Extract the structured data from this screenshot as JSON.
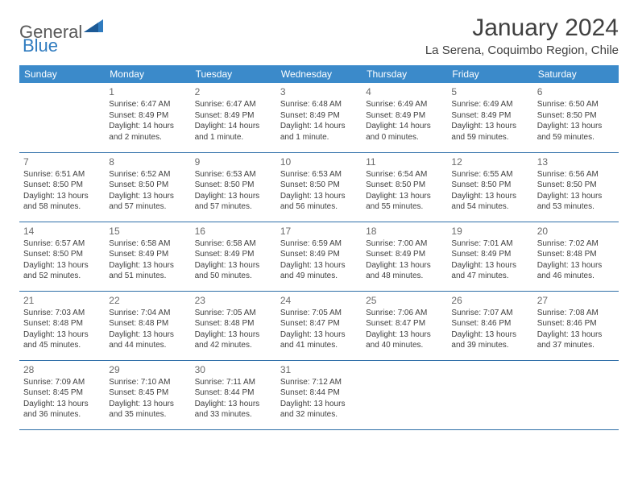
{
  "brand": {
    "part1": "General",
    "part2": "Blue"
  },
  "title": "January 2024",
  "location": "La Serena, Coquimbo Region, Chile",
  "colors": {
    "header_bg": "#3b8aca",
    "header_text": "#ffffff",
    "row_border": "#2f6fa8",
    "body_text": "#404040",
    "daynum_text": "#6a6a6a",
    "brand_gray": "#585858",
    "brand_blue": "#2f7bbf",
    "page_bg": "#ffffff"
  },
  "typography": {
    "title_fontsize": 30,
    "location_fontsize": 15,
    "dayhead_fontsize": 12,
    "cell_fontsize": 10,
    "daynum_fontsize": 12
  },
  "dayHeaders": [
    "Sunday",
    "Monday",
    "Tuesday",
    "Wednesday",
    "Thursday",
    "Friday",
    "Saturday"
  ],
  "weeks": [
    [
      null,
      {
        "n": "1",
        "sr": "6:47 AM",
        "ss": "8:49 PM",
        "dl": "14 hours and 2 minutes."
      },
      {
        "n": "2",
        "sr": "6:47 AM",
        "ss": "8:49 PM",
        "dl": "14 hours and 1 minute."
      },
      {
        "n": "3",
        "sr": "6:48 AM",
        "ss": "8:49 PM",
        "dl": "14 hours and 1 minute."
      },
      {
        "n": "4",
        "sr": "6:49 AM",
        "ss": "8:49 PM",
        "dl": "14 hours and 0 minutes."
      },
      {
        "n": "5",
        "sr": "6:49 AM",
        "ss": "8:49 PM",
        "dl": "13 hours and 59 minutes."
      },
      {
        "n": "6",
        "sr": "6:50 AM",
        "ss": "8:50 PM",
        "dl": "13 hours and 59 minutes."
      }
    ],
    [
      {
        "n": "7",
        "sr": "6:51 AM",
        "ss": "8:50 PM",
        "dl": "13 hours and 58 minutes."
      },
      {
        "n": "8",
        "sr": "6:52 AM",
        "ss": "8:50 PM",
        "dl": "13 hours and 57 minutes."
      },
      {
        "n": "9",
        "sr": "6:53 AM",
        "ss": "8:50 PM",
        "dl": "13 hours and 57 minutes."
      },
      {
        "n": "10",
        "sr": "6:53 AM",
        "ss": "8:50 PM",
        "dl": "13 hours and 56 minutes."
      },
      {
        "n": "11",
        "sr": "6:54 AM",
        "ss": "8:50 PM",
        "dl": "13 hours and 55 minutes."
      },
      {
        "n": "12",
        "sr": "6:55 AM",
        "ss": "8:50 PM",
        "dl": "13 hours and 54 minutes."
      },
      {
        "n": "13",
        "sr": "6:56 AM",
        "ss": "8:50 PM",
        "dl": "13 hours and 53 minutes."
      }
    ],
    [
      {
        "n": "14",
        "sr": "6:57 AM",
        "ss": "8:50 PM",
        "dl": "13 hours and 52 minutes."
      },
      {
        "n": "15",
        "sr": "6:58 AM",
        "ss": "8:49 PM",
        "dl": "13 hours and 51 minutes."
      },
      {
        "n": "16",
        "sr": "6:58 AM",
        "ss": "8:49 PM",
        "dl": "13 hours and 50 minutes."
      },
      {
        "n": "17",
        "sr": "6:59 AM",
        "ss": "8:49 PM",
        "dl": "13 hours and 49 minutes."
      },
      {
        "n": "18",
        "sr": "7:00 AM",
        "ss": "8:49 PM",
        "dl": "13 hours and 48 minutes."
      },
      {
        "n": "19",
        "sr": "7:01 AM",
        "ss": "8:49 PM",
        "dl": "13 hours and 47 minutes."
      },
      {
        "n": "20",
        "sr": "7:02 AM",
        "ss": "8:48 PM",
        "dl": "13 hours and 46 minutes."
      }
    ],
    [
      {
        "n": "21",
        "sr": "7:03 AM",
        "ss": "8:48 PM",
        "dl": "13 hours and 45 minutes."
      },
      {
        "n": "22",
        "sr": "7:04 AM",
        "ss": "8:48 PM",
        "dl": "13 hours and 44 minutes."
      },
      {
        "n": "23",
        "sr": "7:05 AM",
        "ss": "8:48 PM",
        "dl": "13 hours and 42 minutes."
      },
      {
        "n": "24",
        "sr": "7:05 AM",
        "ss": "8:47 PM",
        "dl": "13 hours and 41 minutes."
      },
      {
        "n": "25",
        "sr": "7:06 AM",
        "ss": "8:47 PM",
        "dl": "13 hours and 40 minutes."
      },
      {
        "n": "26",
        "sr": "7:07 AM",
        "ss": "8:46 PM",
        "dl": "13 hours and 39 minutes."
      },
      {
        "n": "27",
        "sr": "7:08 AM",
        "ss": "8:46 PM",
        "dl": "13 hours and 37 minutes."
      }
    ],
    [
      {
        "n": "28",
        "sr": "7:09 AM",
        "ss": "8:45 PM",
        "dl": "13 hours and 36 minutes."
      },
      {
        "n": "29",
        "sr": "7:10 AM",
        "ss": "8:45 PM",
        "dl": "13 hours and 35 minutes."
      },
      {
        "n": "30",
        "sr": "7:11 AM",
        "ss": "8:44 PM",
        "dl": "13 hours and 33 minutes."
      },
      {
        "n": "31",
        "sr": "7:12 AM",
        "ss": "8:44 PM",
        "dl": "13 hours and 32 minutes."
      },
      null,
      null,
      null
    ]
  ],
  "labels": {
    "sunrise": "Sunrise:",
    "sunset": "Sunset:",
    "daylight": "Daylight:"
  }
}
